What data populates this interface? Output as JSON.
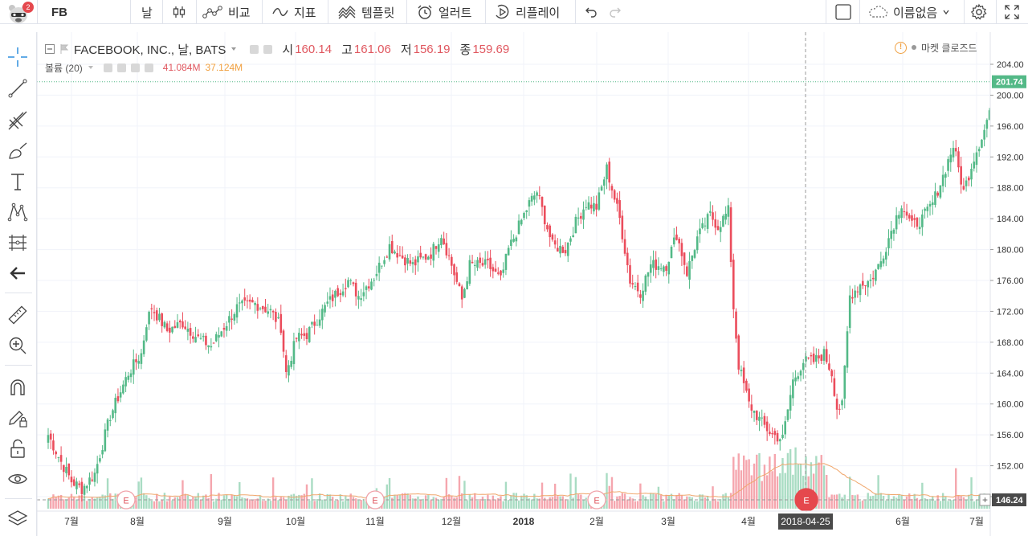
{
  "toolbar": {
    "notification_count": "2",
    "symbol": "FB",
    "interval": "날",
    "compare_label": "비교",
    "indicators_label": "지표",
    "templates_label": "템플릿",
    "alerts_label": "얼러트",
    "replay_label": "리플레이",
    "layout_name": "이름없음"
  },
  "legend": {
    "title": "FACEBOOK, INC., 날, BATS",
    "open_label": "시",
    "open_value": "160.14",
    "high_label": "고",
    "high_value": "161.06",
    "low_label": "저",
    "low_value": "156.19",
    "close_label": "종",
    "close_value": "159.69",
    "volume_label": "볼륨 (20)",
    "volume_value": "41.084M",
    "volume_ma_value": "37.124M",
    "market_status": "마켓 클로즈드"
  },
  "colors": {
    "up": "#53b987",
    "down": "#eb4d5c",
    "up_volume": "#a9dcc3",
    "down_volume": "#f5a6ae",
    "volume_ma": "#f0a76d",
    "last_price": "#53b987",
    "earnings": "#e5484d"
  },
  "price_axis": {
    "ticks": [
      "204.00",
      "200.00",
      "196.00",
      "192.00",
      "188.00",
      "184.00",
      "180.00",
      "176.00",
      "172.00",
      "168.00",
      "164.00",
      "160.00",
      "156.00",
      "152.00",
      "148.00"
    ],
    "last_price_label": "201.74",
    "crosshair_label": "146.24"
  },
  "time_axis": {
    "ticks": [
      "7월",
      "8월",
      "9월",
      "10월",
      "11월",
      "12월",
      "2018",
      "2월",
      "3월",
      "4월",
      "5월",
      "6월",
      "7월"
    ],
    "crosshair_label": "2018-04-25"
  },
  "earnings_markers": [
    "E",
    "E",
    "E",
    "E"
  ],
  "chart_data": {
    "type": "candlestick",
    "title": "FACEBOOK, INC., 날, BATS",
    "ylim": [
      146.0,
      205.5
    ],
    "y_ticks": [
      204,
      200,
      196,
      192,
      188,
      184,
      180,
      176,
      172,
      168,
      164,
      160,
      156,
      152,
      148
    ],
    "x_ticks": [
      "7월",
      "8월",
      "9월",
      "10월",
      "11월",
      "12월",
      "2018",
      "2월",
      "3월",
      "4월",
      "5월",
      "6월",
      "7월"
    ],
    "period": "2017-06 to 2018-07",
    "last_price": 201.74,
    "crosshair_date": "2018-04-25",
    "crosshair_price": 146.24,
    "volume_indicator": {
      "name": "볼륨 (20)",
      "volume": "41.084M",
      "ma": "37.124M"
    },
    "close_anchors": [
      [
        0,
        156.0
      ],
      [
        5,
        152.5
      ],
      [
        9,
        150.0
      ],
      [
        13,
        149.0
      ],
      [
        18,
        151.0
      ],
      [
        24,
        158.5
      ],
      [
        31,
        164.0
      ],
      [
        36,
        166.5
      ],
      [
        38,
        170.5
      ],
      [
        40,
        172.5
      ],
      [
        46,
        169.5
      ],
      [
        52,
        170.5
      ],
      [
        58,
        168.5
      ],
      [
        63,
        167.5
      ],
      [
        68,
        170.0
      ],
      [
        73,
        172.5
      ],
      [
        80,
        173.0
      ],
      [
        86,
        172.0
      ],
      [
        90,
        170.0
      ],
      [
        92,
        164.0
      ],
      [
        96,
        168.5
      ],
      [
        100,
        169.0
      ],
      [
        108,
        173.0
      ],
      [
        116,
        176.0
      ],
      [
        120,
        174.0
      ],
      [
        126,
        176.5
      ],
      [
        132,
        180.5
      ],
      [
        137,
        179.0
      ],
      [
        141,
        178.0
      ],
      [
        148,
        179.5
      ],
      [
        152,
        182.0
      ],
      [
        156,
        178.0
      ],
      [
        160,
        173.5
      ],
      [
        163,
        178.0
      ],
      [
        170,
        178.0
      ],
      [
        175,
        176.0
      ],
      [
        178,
        180.0
      ],
      [
        186,
        186.0
      ],
      [
        189,
        187.5
      ],
      [
        195,
        180.5
      ],
      [
        200,
        180.0
      ],
      [
        204,
        183.5
      ],
      [
        208,
        186.0
      ],
      [
        212,
        185.5
      ],
      [
        216,
        190.5
      ],
      [
        221,
        184.0
      ],
      [
        225,
        176.0
      ],
      [
        229,
        174.5
      ],
      [
        233,
        178.0
      ],
      [
        239,
        178.0
      ],
      [
        243,
        182.0
      ],
      [
        247,
        177.0
      ],
      [
        251,
        181.5
      ],
      [
        256,
        184.5
      ],
      [
        259,
        183.0
      ],
      [
        263,
        185.0
      ],
      [
        265,
        172.5
      ],
      [
        267,
        165.0
      ],
      [
        271,
        160.0
      ],
      [
        276,
        157.5
      ],
      [
        280,
        156.0
      ],
      [
        284,
        155.5
      ],
      [
        288,
        163.0
      ],
      [
        292,
        165.5
      ],
      [
        296,
        165.5
      ],
      [
        300,
        166.5
      ],
      [
        303,
        164.0
      ],
      [
        305,
        159.5
      ],
      [
        307,
        159.7
      ],
      [
        310,
        174.0
      ],
      [
        314,
        175.5
      ],
      [
        318,
        176.0
      ],
      [
        322,
        178.5
      ],
      [
        326,
        182.5
      ],
      [
        330,
        186.0
      ],
      [
        334,
        183.0
      ],
      [
        338,
        184.0
      ],
      [
        342,
        186.0
      ],
      [
        346,
        189.5
      ],
      [
        350,
        193.5
      ],
      [
        354,
        187.5
      ],
      [
        358,
        192.0
      ],
      [
        362,
        195.5
      ],
      [
        366,
        200.5
      ],
      [
        370,
        203.0
      ],
      [
        372,
        201.7
      ]
    ]
  }
}
